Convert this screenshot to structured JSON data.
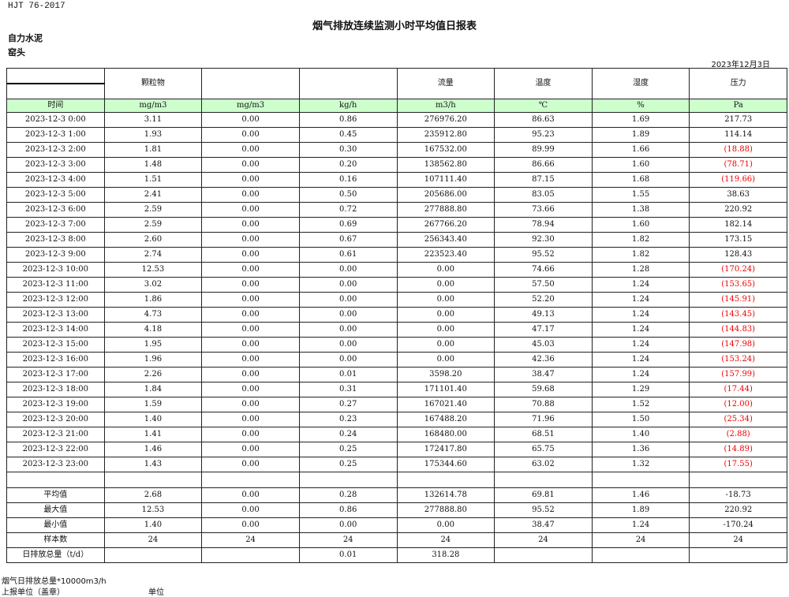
{
  "header": {
    "standard": "HJT  76-2017",
    "title": "烟气排放连续监测小时平均值日报表",
    "company": "自力水泥",
    "unit": "窑头",
    "date": "2023年12月3日"
  },
  "columns": {
    "names": [
      "",
      "颗粒物",
      "",
      "",
      "流量",
      "温度",
      "湿度",
      "压力"
    ],
    "units": [
      "时间",
      "mg/m3",
      "mg/m3",
      "kg/h",
      "m3/h",
      "℃",
      "%",
      "Pa"
    ]
  },
  "negative_color": "#ee0000",
  "rows": [
    [
      "2023-12-3 0:00",
      "3.11",
      "0.00",
      "0.86",
      "276976.20",
      "86.63",
      "1.69",
      "217.73"
    ],
    [
      "2023-12-3 1:00",
      "1.93",
      "0.00",
      "0.45",
      "235912.80",
      "95.23",
      "1.89",
      "114.14"
    ],
    [
      "2023-12-3 2:00",
      "1.81",
      "0.00",
      "0.30",
      "167532.00",
      "89.99",
      "1.66",
      "(18.88)"
    ],
    [
      "2023-12-3 3:00",
      "1.48",
      "0.00",
      "0.20",
      "138562.80",
      "86.66",
      "1.60",
      "(78.71)"
    ],
    [
      "2023-12-3 4:00",
      "1.51",
      "0.00",
      "0.16",
      "107111.40",
      "87.15",
      "1.68",
      "(119.66)"
    ],
    [
      "2023-12-3 5:00",
      "2.41",
      "0.00",
      "0.50",
      "205686.00",
      "83.05",
      "1.55",
      "38.63"
    ],
    [
      "2023-12-3 6:00",
      "2.59",
      "0.00",
      "0.72",
      "277888.80",
      "73.66",
      "1.38",
      "220.92"
    ],
    [
      "2023-12-3 7:00",
      "2.59",
      "0.00",
      "0.69",
      "267766.20",
      "78.94",
      "1.60",
      "182.14"
    ],
    [
      "2023-12-3 8:00",
      "2.60",
      "0.00",
      "0.67",
      "256343.40",
      "92.30",
      "1.82",
      "173.15"
    ],
    [
      "2023-12-3 9:00",
      "2.74",
      "0.00",
      "0.61",
      "223523.40",
      "95.52",
      "1.82",
      "128.43"
    ],
    [
      "2023-12-3 10:00",
      "12.53",
      "0.00",
      "0.00",
      "0.00",
      "74.66",
      "1.28",
      "(170.24)"
    ],
    [
      "2023-12-3 11:00",
      "3.02",
      "0.00",
      "0.00",
      "0.00",
      "57.50",
      "1.24",
      "(153.65)"
    ],
    [
      "2023-12-3 12:00",
      "1.86",
      "0.00",
      "0.00",
      "0.00",
      "52.20",
      "1.24",
      "(145.91)"
    ],
    [
      "2023-12-3 13:00",
      "4.73",
      "0.00",
      "0.00",
      "0.00",
      "49.13",
      "1.24",
      "(143.45)"
    ],
    [
      "2023-12-3 14:00",
      "4.18",
      "0.00",
      "0.00",
      "0.00",
      "47.17",
      "1.24",
      "(144.83)"
    ],
    [
      "2023-12-3 15:00",
      "1.95",
      "0.00",
      "0.00",
      "0.00",
      "45.03",
      "1.24",
      "(147.98)"
    ],
    [
      "2023-12-3 16:00",
      "1.96",
      "0.00",
      "0.00",
      "0.00",
      "42.36",
      "1.24",
      "(153.24)"
    ],
    [
      "2023-12-3 17:00",
      "2.26",
      "0.00",
      "0.01",
      "3598.20",
      "38.47",
      "1.24",
      "(157.99)"
    ],
    [
      "2023-12-3 18:00",
      "1.84",
      "0.00",
      "0.31",
      "171101.40",
      "59.68",
      "1.29",
      "(17.44)"
    ],
    [
      "2023-12-3 19:00",
      "1.59",
      "0.00",
      "0.27",
      "167021.40",
      "70.88",
      "1.52",
      "(12.00)"
    ],
    [
      "2023-12-3 20:00",
      "1.40",
      "0.00",
      "0.23",
      "167488.20",
      "71.96",
      "1.50",
      "(25.34)"
    ],
    [
      "2023-12-3 21:00",
      "1.41",
      "0.00",
      "0.24",
      "168480.00",
      "68.51",
      "1.40",
      "(2.88)"
    ],
    [
      "2023-12-3 22:00",
      "1.46",
      "0.00",
      "0.25",
      "172417.80",
      "65.75",
      "1.36",
      "(14.89)"
    ],
    [
      "2023-12-3 23:00",
      "1.43",
      "0.00",
      "0.25",
      "175344.60",
      "63.02",
      "1.32",
      "(17.55)"
    ]
  ],
  "summary": [
    [
      "平均值",
      "2.68",
      "0.00",
      "0.28",
      "132614.78",
      "69.81",
      "1.46",
      "-18.73"
    ],
    [
      "最大值",
      "12.53",
      "0.00",
      "0.86",
      "277888.80",
      "95.52",
      "1.89",
      "220.92"
    ],
    [
      "最小值",
      "1.40",
      "0.00",
      "0.00",
      "0.00",
      "38.47",
      "1.24",
      "-170.24"
    ],
    [
      "样本数",
      "24",
      "24",
      "24",
      "24",
      "24",
      "24",
      "24"
    ],
    [
      "日排放总量（t/d）",
      "",
      "",
      "0.01",
      "318.28",
      "",
      "",
      ""
    ]
  ],
  "footer": {
    "line1": "烟气日排放总量*10000m3/h",
    "line2": "上报单位（盖章）",
    "line3": "单位"
  }
}
